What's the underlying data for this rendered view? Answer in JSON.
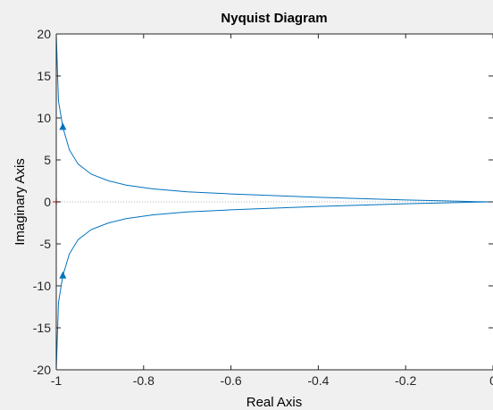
{
  "chart_data": {
    "type": "line",
    "title": "Nyquist Diagram",
    "xlabel": "Real Axis",
    "ylabel": "Imaginary Axis",
    "xlim": [
      -1,
      0
    ],
    "ylim": [
      -20,
      20
    ],
    "x_ticks": [
      -1,
      -0.8,
      -0.6,
      -0.4,
      -0.2,
      0
    ],
    "x_tick_labels": [
      "-1",
      "-0.8",
      "-0.6",
      "-0.4",
      "-0.2",
      "0"
    ],
    "y_ticks": [
      20,
      15,
      10,
      5,
      0,
      -5,
      -10,
      -15,
      -20
    ],
    "y_tick_labels": [
      "20",
      "15",
      "10",
      "5",
      "0",
      "-5",
      "-10",
      "-15",
      "-20"
    ],
    "grid": false,
    "critical_point": {
      "x": -1,
      "y": 0,
      "marker": "+"
    },
    "series": [
      {
        "line_color": "#0072bd",
        "points": [
          {
            "x": -1.0,
            "y": 20.0
          },
          {
            "x": -0.995,
            "y": 12.0
          },
          {
            "x": -0.985,
            "y": 8.9
          },
          {
            "x": -0.97,
            "y": 6.2
          },
          {
            "x": -0.95,
            "y": 4.5
          },
          {
            "x": -0.92,
            "y": 3.3
          },
          {
            "x": -0.88,
            "y": 2.5
          },
          {
            "x": -0.84,
            "y": 2.0
          },
          {
            "x": -0.78,
            "y": 1.55
          },
          {
            "x": -0.7,
            "y": 1.2
          },
          {
            "x": -0.6,
            "y": 0.95
          },
          {
            "x": -0.5,
            "y": 0.75
          },
          {
            "x": -0.4,
            "y": 0.55
          },
          {
            "x": -0.3,
            "y": 0.38
          },
          {
            "x": -0.2,
            "y": 0.22
          },
          {
            "x": -0.1,
            "y": 0.1
          },
          {
            "x": -0.04,
            "y": 0.03
          },
          {
            "x": 0.0,
            "y": 0.0
          },
          {
            "x": -0.04,
            "y": -0.03
          },
          {
            "x": -0.1,
            "y": -0.1
          },
          {
            "x": -0.2,
            "y": -0.22
          },
          {
            "x": -0.3,
            "y": -0.38
          },
          {
            "x": -0.4,
            "y": -0.55
          },
          {
            "x": -0.5,
            "y": -0.75
          },
          {
            "x": -0.6,
            "y": -0.95
          },
          {
            "x": -0.7,
            "y": -1.2
          },
          {
            "x": -0.78,
            "y": -1.55
          },
          {
            "x": -0.84,
            "y": -2.0
          },
          {
            "x": -0.88,
            "y": -2.5
          },
          {
            "x": -0.92,
            "y": -3.3
          },
          {
            "x": -0.95,
            "y": -4.5
          },
          {
            "x": -0.97,
            "y": -6.2
          },
          {
            "x": -0.985,
            "y": -8.8
          },
          {
            "x": -0.995,
            "y": -12.0
          },
          {
            "x": -1.0,
            "y": -20.0
          }
        ],
        "arrows": [
          {
            "x": -0.985,
            "y": 8.9,
            "direction": "up"
          },
          {
            "x": -0.985,
            "y": -8.8,
            "direction": "up"
          }
        ]
      }
    ]
  }
}
